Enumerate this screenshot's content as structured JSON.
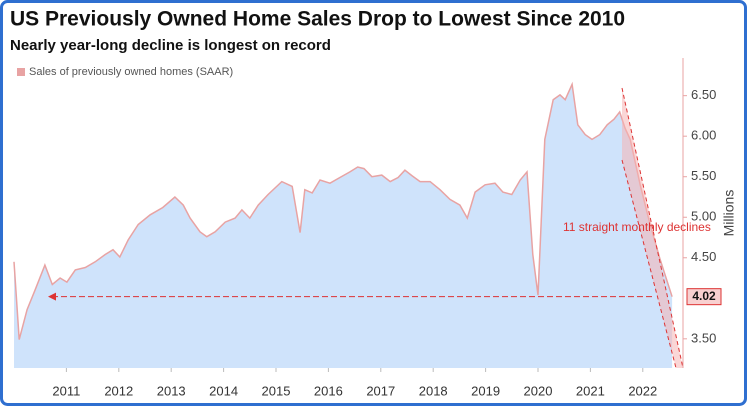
{
  "chart_data": {
    "type": "area",
    "title": "US Previously Owned Home Sales Drop to Lowest Since 2010",
    "subtitle": "Nearly year-long decline is longest on record",
    "y_axis_label": "Millions",
    "annotation": "11 straight monthly declines",
    "end_label": {
      "value": 4.02,
      "label": "4.02"
    },
    "x": [
      2010.0,
      2010.1,
      2010.25,
      2010.4,
      2010.59,
      2010.73,
      2010.88,
      2011.01,
      2011.17,
      2011.36,
      2011.55,
      2011.74,
      2011.89,
      2012.02,
      2012.18,
      2012.37,
      2012.6,
      2012.84,
      2013.07,
      2013.23,
      2013.36,
      2013.55,
      2013.68,
      2013.84,
      2014.03,
      2014.22,
      2014.35,
      2014.5,
      2014.66,
      2014.85,
      2015.11,
      2015.31,
      2015.46,
      2015.55,
      2015.69,
      2015.84,
      2016.03,
      2016.22,
      2016.41,
      2016.56,
      2016.68,
      2016.83,
      2017.02,
      2017.18,
      2017.33,
      2017.46,
      2017.6,
      2017.75,
      2017.94,
      2018.13,
      2018.32,
      2018.51,
      2018.65,
      2018.8,
      2018.99,
      2019.18,
      2019.33,
      2019.5,
      2019.66,
      2019.79,
      2019.9,
      2020.0,
      2020.13,
      2020.29,
      2020.42,
      2020.52,
      2020.65,
      2020.76,
      2020.9,
      2021.03,
      2021.18,
      2021.32,
      2021.45,
      2021.56,
      2021.66,
      2021.76,
      2021.95,
      2022.14,
      2022.33,
      2022.56
    ],
    "series": [
      {
        "name": "Sales of previously owned homes (SAAR)",
        "color": "#e8a3a3",
        "fill": "#cfe3fb",
        "values": [
          4.45,
          3.49,
          3.86,
          4.1,
          4.41,
          4.17,
          4.25,
          4.2,
          4.35,
          4.38,
          4.45,
          4.54,
          4.6,
          4.51,
          4.72,
          4.91,
          5.03,
          5.12,
          5.25,
          5.15,
          4.99,
          4.82,
          4.76,
          4.82,
          4.94,
          4.99,
          5.09,
          4.99,
          5.15,
          5.28,
          5.44,
          5.38,
          4.81,
          5.34,
          5.3,
          5.46,
          5.42,
          5.49,
          5.56,
          5.62,
          5.6,
          5.5,
          5.52,
          5.44,
          5.49,
          5.58,
          5.51,
          5.44,
          5.44,
          5.34,
          5.22,
          5.15,
          4.99,
          5.31,
          5.4,
          5.42,
          5.31,
          5.28,
          5.46,
          5.56,
          4.54,
          4.04,
          5.96,
          6.45,
          6.51,
          6.45,
          6.64,
          6.14,
          6.02,
          5.96,
          6.02,
          6.14,
          6.21,
          6.3,
          6.1,
          5.96,
          5.4,
          4.91,
          4.48,
          4.02
        ]
      }
    ],
    "xlim": [
      2010,
      2022.71
    ],
    "xticks": [
      2011,
      2012,
      2013,
      2014,
      2015,
      2016,
      2017,
      2018,
      2019,
      2020,
      2021,
      2022
    ],
    "ylim": [
      3.14,
      6.94
    ],
    "yticks": [
      {
        "value": 3.5,
        "label": "3.50"
      },
      {
        "value": 4.5,
        "label": "4.50"
      },
      {
        "value": 5,
        "label": "5.00"
      },
      {
        "value": 5.5,
        "label": "5.50"
      },
      {
        "value": 6,
        "label": "6.00"
      },
      {
        "value": 6.5,
        "label": "6.50"
      }
    ]
  }
}
